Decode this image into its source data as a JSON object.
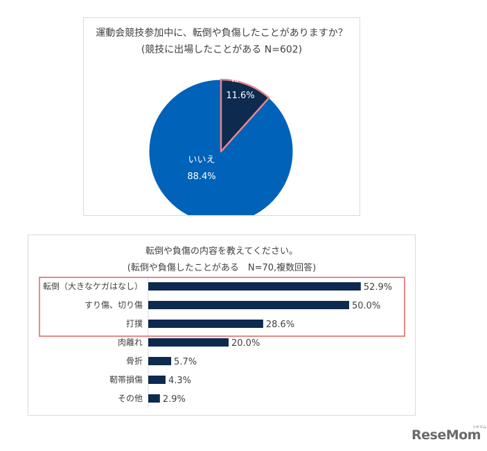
{
  "pie_panel": {
    "title_line1": "運動会競技参加中に、転倒や負傷したことがありますか？",
    "title_line2": "(競技に出場したことがある N=602)"
  },
  "bar_panel": {
    "title_line1": "転倒や負傷の内容を教えてください。",
    "title_line2": "(転倒や負傷したことがある　N=70,複数回答)"
  },
  "colors": {
    "yes": "#0d2a4f",
    "no": "#0062b8",
    "bar": "#0d2a4f",
    "highlight": "#e8868a"
  },
  "logo": {
    "text": "ReseMom",
    "sub": "リセマム"
  },
  "chart_data": [
    {
      "type": "pie",
      "title": "運動会競技参加中に、転倒や負傷したことがありますか？ (競技に出場したことがある N=602)",
      "slices": [
        {
          "label": "はい",
          "value": 11.6,
          "display": "11.6%"
        },
        {
          "label": "いいえ",
          "value": 88.4,
          "display": "88.4%"
        }
      ]
    },
    {
      "type": "bar",
      "orientation": "horizontal",
      "title": "転倒や負傷の内容を教えてください。 (転倒や負傷したことがある　N=70,複数回答)",
      "categories": [
        "転倒（大きなケガはなし）",
        "すり傷、切り傷",
        "打撲",
        "肉離れ",
        "骨折",
        "靭帯損傷",
        "その他"
      ],
      "values": [
        52.9,
        50.0,
        28.6,
        20.0,
        5.7,
        4.3,
        2.9
      ],
      "value_labels": [
        "52.9%",
        "50.0%",
        "28.6%",
        "20.0%",
        "5.7%",
        "4.3%",
        "2.9%"
      ],
      "highlighted_categories": [
        "転倒（大きなケガはなし）",
        "すり傷、切り傷",
        "打撲"
      ],
      "grid": false,
      "legend": "none"
    }
  ]
}
